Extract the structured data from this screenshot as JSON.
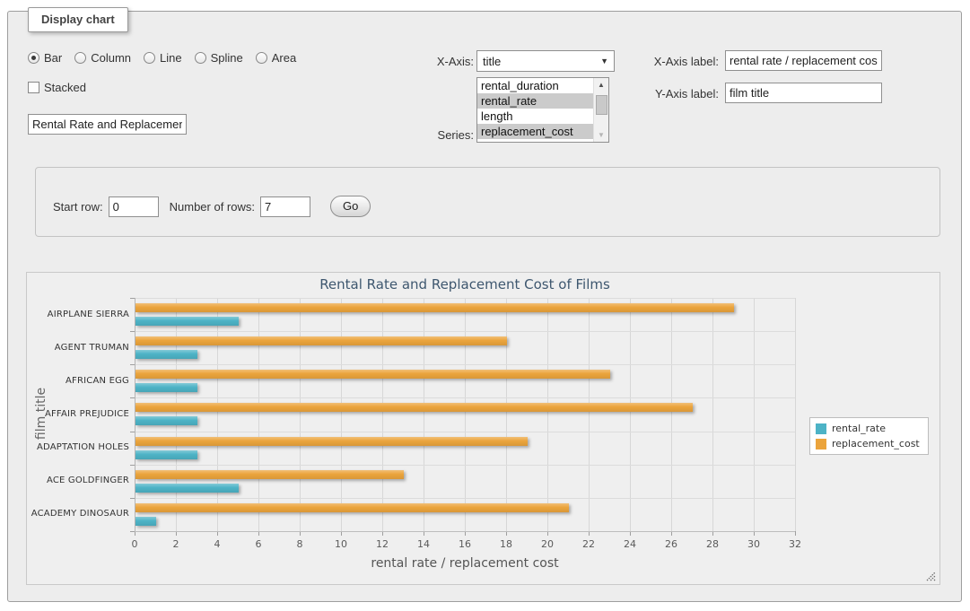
{
  "display_panel": {
    "legend_title": "Display chart",
    "chart_types": [
      {
        "label": "Bar",
        "selected": true
      },
      {
        "label": "Column",
        "selected": false
      },
      {
        "label": "Line",
        "selected": false
      },
      {
        "label": "Spline",
        "selected": false
      },
      {
        "label": "Area",
        "selected": false
      }
    ],
    "stacked_label": "Stacked",
    "chart_title_input_value": "Rental Rate and Replacement Cost of Films",
    "x_axis_select": {
      "label": "X-Axis:",
      "value": "title",
      "arrow_icon": "▼"
    },
    "series_select": {
      "label": "Series:",
      "options": [
        {
          "label": "rental_duration",
          "selected": false
        },
        {
          "label": "rental_rate",
          "selected": true
        },
        {
          "label": "length",
          "selected": false
        },
        {
          "label": "replacement_cost",
          "selected": true
        }
      ],
      "scroll_up_icon": "▲",
      "scroll_down_icon": "▼"
    },
    "x_axis_label_field": {
      "label": "X-Axis label:",
      "value": "rental rate / replacement cost"
    },
    "y_axis_label_field": {
      "label": "Y-Axis label:",
      "value": "film title"
    }
  },
  "rows_panel": {
    "start_row_label": "Start row:",
    "start_row_value": "0",
    "number_of_rows_label": "Number of rows:",
    "number_of_rows_value": "7",
    "go_button_label": "Go"
  },
  "chart_data": {
    "type": "bar",
    "title": "Rental Rate and Replacement Cost of Films",
    "categories": [
      "AIRPLANE SIERRA",
      "AGENT TRUMAN",
      "AFRICAN EGG",
      "AFFAIR PREJUDICE",
      "ADAPTATION HOLES",
      "ACE GOLDFINGER",
      "ACADEMY DINOSAUR"
    ],
    "series": [
      {
        "name": "rental_rate",
        "color": "#4DB3C6",
        "values": [
          4.99,
          2.99,
          2.99,
          2.99,
          2.99,
          4.99,
          0.99
        ]
      },
      {
        "name": "replacement_cost",
        "color": "#EBA43C",
        "values": [
          28.99,
          17.99,
          22.99,
          26.99,
          18.99,
          12.99,
          20.99
        ]
      }
    ],
    "xlabel": "rental rate / replacement cost",
    "ylabel": "film title",
    "xlim": [
      0,
      32
    ],
    "xtick_step": 2,
    "grid": true,
    "legend_position": "right-middle",
    "series_draw_order": "replacement_cost above rental_rate within each category"
  }
}
